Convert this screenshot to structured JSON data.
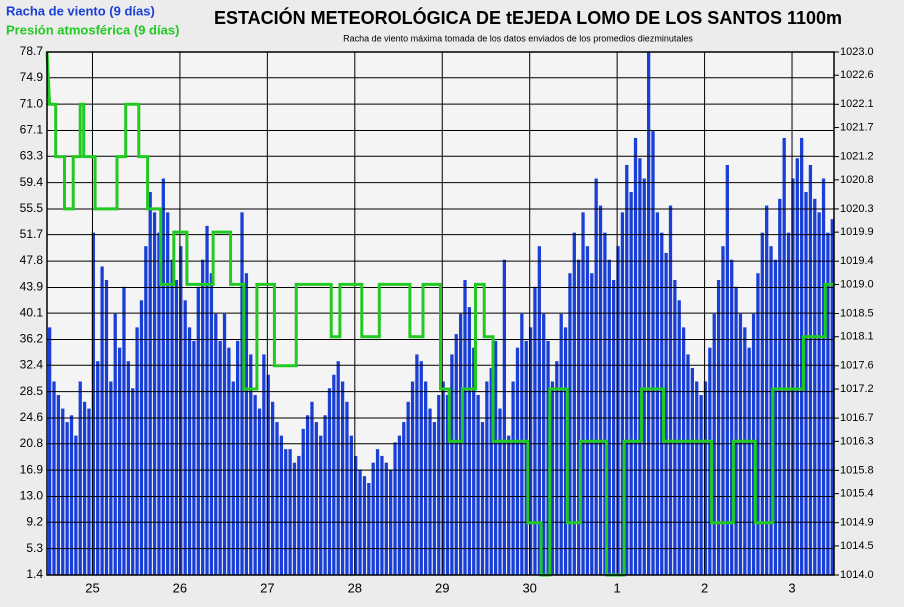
{
  "chart_data": {
    "type": "bar-line",
    "title": "ESTACIÓN METEOROLÓGICA DE tEJEDA LOMO DE LOS SANTOS 1100m",
    "subtitle": "Racha de viento máxima tomada de los datos enviados de los promedios diezminutales",
    "xlim": [
      0,
      9
    ],
    "xticks": [
      {
        "value": 0.52,
        "label": "25"
      },
      {
        "value": 1.52,
        "label": "26"
      },
      {
        "value": 2.52,
        "label": "27"
      },
      {
        "value": 3.52,
        "label": "28"
      },
      {
        "value": 4.52,
        "label": "29"
      },
      {
        "value": 5.52,
        "label": "30"
      },
      {
        "value": 6.52,
        "label": "1"
      },
      {
        "value": 7.52,
        "label": "2"
      },
      {
        "value": 8.52,
        "label": "3"
      }
    ],
    "ylim": [
      1.4,
      78.7
    ],
    "yticks": [
      1.4,
      5.3,
      9.2,
      {
        "value": 13,
        "label": "13.0"
      },
      16.9,
      20.8,
      24.6,
      28.5,
      32.4,
      36.2,
      40.1,
      43.9,
      47.8,
      51.7,
      55.5,
      59.4,
      63.3,
      67.1,
      {
        "value": 71,
        "label": "71.0"
      },
      74.9,
      78.7
    ],
    "y2lim": [
      1014,
      1023
    ],
    "y2ticks": [
      {
        "value": 1014,
        "label": "1014.0"
      },
      {
        "value": 1014.5,
        "label": "1014.5"
      },
      {
        "value": 1014.9,
        "label": "1014.9"
      },
      {
        "value": 1015.4,
        "label": "1015.4"
      },
      {
        "value": 1015.8,
        "label": "1015.8"
      },
      {
        "value": 1016.3,
        "label": "1016.3"
      },
      {
        "value": 1016.7,
        "label": "1016.7"
      },
      {
        "value": 1017.2,
        "label": "1017.2"
      },
      {
        "value": 1017.6,
        "label": "1017.6"
      },
      {
        "value": 1018.1,
        "label": "1018.1"
      },
      {
        "value": 1018.5,
        "label": "1018.5"
      },
      {
        "value": 1019,
        "label": "1019.0"
      },
      {
        "value": 1019.4,
        "label": "1019.4"
      },
      {
        "value": 1019.9,
        "label": "1019.9"
      },
      {
        "value": 1020.3,
        "label": "1020.3"
      },
      {
        "value": 1020.8,
        "label": "1020.8"
      },
      {
        "value": 1021.2,
        "label": "1021.2"
      },
      {
        "value": 1021.7,
        "label": "1021.7"
      },
      {
        "value": 1022.1,
        "label": "1022.1"
      },
      {
        "value": 1022.6,
        "label": "1022.6"
      },
      {
        "value": 1023,
        "label": "1023.0"
      }
    ],
    "grid": true,
    "series": [
      {
        "name": "Racha de viento (9 días)",
        "color": "#1a3fd6",
        "kind": "bar",
        "x": [
          0,
          0.05,
          0.1,
          0.15,
          0.2,
          0.25,
          0.3,
          0.35,
          0.4,
          0.45,
          0.5,
          0.55,
          0.6,
          0.65,
          0.7,
          0.75,
          0.8,
          0.85,
          0.9,
          0.95,
          1,
          1.05,
          1.1,
          1.15,
          1.2,
          1.25,
          1.3,
          1.35,
          1.4,
          1.45,
          1.5,
          1.55,
          1.6,
          1.65,
          1.7,
          1.75,
          1.8,
          1.85,
          1.9,
          1.95,
          2,
          2.05,
          2.1,
          2.15,
          2.2,
          2.25,
          2.3,
          2.35,
          2.4,
          2.45,
          2.5,
          2.55,
          2.6,
          2.65,
          2.7,
          2.75,
          2.8,
          2.85,
          2.9,
          2.95,
          3,
          3.05,
          3.1,
          3.15,
          3.2,
          3.25,
          3.3,
          3.35,
          3.4,
          3.45,
          3.5,
          3.55,
          3.6,
          3.65,
          3.7,
          3.75,
          3.8,
          3.85,
          3.9,
          3.95,
          4,
          4.05,
          4.1,
          4.15,
          4.2,
          4.25,
          4.3,
          4.35,
          4.4,
          4.45,
          4.5,
          4.55,
          4.6,
          4.65,
          4.7,
          4.75,
          4.8,
          4.85,
          4.9,
          4.95,
          5,
          5.05,
          5.1,
          5.15,
          5.2,
          5.25,
          5.3,
          5.35,
          5.4,
          5.45,
          5.5,
          5.55,
          5.6,
          5.65,
          5.7,
          5.75,
          5.8,
          5.85,
          5.9,
          5.95,
          6,
          6.05,
          6.1,
          6.15,
          6.2,
          6.25,
          6.3,
          6.35,
          6.4,
          6.45,
          6.5,
          6.55,
          6.6,
          6.65,
          6.7,
          6.75,
          6.8,
          6.85,
          6.9,
          6.95,
          7,
          7.05,
          7.1,
          7.15,
          7.2,
          7.25,
          7.3,
          7.35,
          7.4,
          7.45,
          7.5,
          7.55,
          7.6,
          7.65,
          7.7,
          7.75,
          7.8,
          7.85,
          7.9,
          7.95,
          8,
          8.05,
          8.1,
          8.15,
          8.2,
          8.25,
          8.3,
          8.35,
          8.4,
          8.45,
          8.5,
          8.55,
          8.6,
          8.65,
          8.7,
          8.75,
          8.8,
          8.85,
          8.9,
          8.95
        ],
        "values": [
          38,
          30,
          28,
          26,
          24,
          25,
          22,
          30,
          27,
          26,
          52,
          33,
          47,
          45,
          30,
          40,
          35,
          44,
          33,
          29,
          38,
          42,
          50,
          58,
          55,
          52,
          60,
          55,
          48,
          45,
          50,
          42,
          38,
          36,
          44,
          48,
          53,
          46,
          40,
          36,
          40,
          35,
          30,
          36,
          55,
          46,
          34,
          28,
          26,
          34,
          31,
          27,
          24,
          22,
          20,
          20,
          18,
          19,
          23,
          25,
          27,
          24,
          22,
          25,
          29,
          31,
          33,
          30,
          27,
          22,
          19,
          17,
          16,
          15,
          18,
          20,
          19,
          18,
          17,
          21,
          22,
          24,
          27,
          30,
          34,
          33,
          30,
          26,
          24,
          28,
          30,
          28,
          34,
          37,
          40,
          45,
          41,
          35,
          28,
          24,
          30,
          32,
          36,
          26,
          48,
          22,
          30,
          35,
          40,
          36,
          38,
          44,
          50,
          40,
          36,
          30,
          33,
          40,
          38,
          46,
          52,
          48,
          55,
          50,
          46,
          60,
          56,
          52,
          48,
          45,
          50,
          55,
          62,
          58,
          66,
          63,
          60,
          78.7,
          67,
          55,
          52,
          49,
          56,
          45,
          42,
          38,
          34,
          32,
          30,
          28,
          30,
          35,
          40,
          45,
          50,
          62,
          48,
          44,
          40,
          38,
          35,
          40,
          46,
          52,
          56,
          50,
          48,
          57,
          66,
          52,
          60,
          63,
          66,
          58,
          62,
          57,
          55,
          60,
          52,
          54
        ]
      },
      {
        "name": "Presión atmosférica (9 días)",
        "color": "#22c922",
        "kind": "line",
        "axis": "y2",
        "x": [
          0,
          0.03,
          0.1,
          0.1,
          0.2,
          0.2,
          0.3,
          0.3,
          0.38,
          0.38,
          0.42,
          0.42,
          0.55,
          0.55,
          0.8,
          0.8,
          0.9,
          0.9,
          1.05,
          1.05,
          1.15,
          1.15,
          1.3,
          1.3,
          1.45,
          1.45,
          1.6,
          1.6,
          1.9,
          1.9,
          2.1,
          2.1,
          2.25,
          2.25,
          2.4,
          2.4,
          2.6,
          2.6,
          2.85,
          2.85,
          3.25,
          3.25,
          3.35,
          3.35,
          3.6,
          3.6,
          3.8,
          3.8,
          4.15,
          4.15,
          4.3,
          4.3,
          4.5,
          4.5,
          4.6,
          4.6,
          4.75,
          4.75,
          4.9,
          4.9,
          5,
          5,
          5.1,
          5.1,
          5.5,
          5.5,
          5.65,
          5.65,
          5.75,
          5.75,
          5.95,
          5.95,
          6.1,
          6.1,
          6.4,
          6.4,
          6.6,
          6.6,
          6.8,
          6.8,
          7.05,
          7.05,
          7.6,
          7.6,
          7.85,
          7.85,
          8.1,
          8.1,
          8.3,
          8.3,
          8.65,
          8.65,
          8.9,
          8.9,
          9
        ],
        "values": [
          1023,
          1022.1,
          1022.1,
          1021.2,
          1021.2,
          1020.3,
          1020.3,
          1021.2,
          1021.2,
          1022.1,
          1022.1,
          1021.2,
          1021.2,
          1020.3,
          1020.3,
          1021.2,
          1021.2,
          1022.1,
          1022.1,
          1021.2,
          1021.2,
          1020.3,
          1020.3,
          1019,
          1019,
          1019.9,
          1019.9,
          1019,
          1019,
          1019.9,
          1019.9,
          1019,
          1019,
          1017.2,
          1017.2,
          1019,
          1019,
          1017.6,
          1017.6,
          1019,
          1019,
          1018.1,
          1018.1,
          1019,
          1019,
          1018.1,
          1018.1,
          1019,
          1019,
          1018.1,
          1018.1,
          1019,
          1019,
          1017.2,
          1017.2,
          1016.3,
          1016.3,
          1017.2,
          1017.2,
          1019,
          1019,
          1018.1,
          1018.1,
          1016.3,
          1016.3,
          1014.9,
          1014.9,
          1014,
          1014,
          1017.2,
          1017.2,
          1014.9,
          1014.9,
          1016.3,
          1016.3,
          1014,
          1014,
          1016.3,
          1016.3,
          1017.2,
          1017.2,
          1016.3,
          1016.3,
          1014.9,
          1014.9,
          1016.3,
          1016.3,
          1014.9,
          1014.9,
          1017.2,
          1017.2,
          1018.1,
          1018.1,
          1019,
          1019
        ]
      }
    ]
  }
}
